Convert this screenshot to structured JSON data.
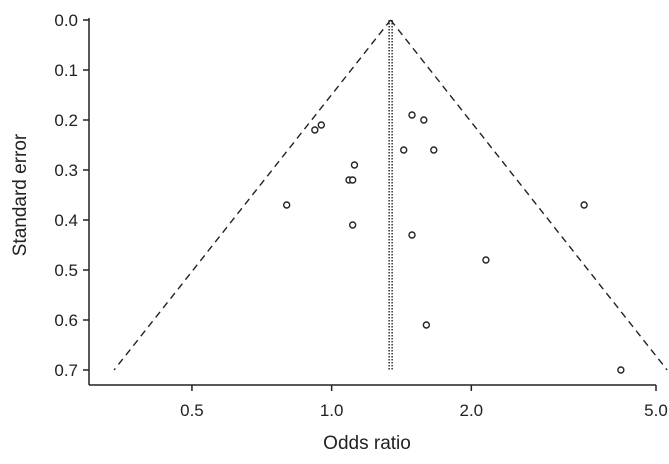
{
  "chart_data": {
    "type": "scatter",
    "subtype": "funnel-plot",
    "title": "",
    "xlabel": "Odds ratio",
    "ylabel": "Standard error",
    "x_scale": "log",
    "xlim": [
      0.3,
      5.0
    ],
    "ylim": [
      0.0,
      0.7
    ],
    "y_inverted": true,
    "x_ticks": [
      0.5,
      1.0,
      2.0,
      5.0
    ],
    "x_tick_labels": [
      "0.5",
      "1.0",
      "2.0",
      "5.0"
    ],
    "y_ticks": [
      0.0,
      0.1,
      0.2,
      0.3,
      0.4,
      0.5,
      0.6,
      0.7
    ],
    "y_tick_labels": [
      "0.0",
      "0.1",
      "0.2",
      "0.3",
      "0.4",
      "0.5",
      "0.6",
      "0.7"
    ],
    "pooled_or": 1.34,
    "funnel_limits": "95% pseudo-confidence limits (OR x exp(±1.96·SE))",
    "grid": false,
    "points": [
      {
        "x": 0.92,
        "y": 0.22
      },
      {
        "x": 0.95,
        "y": 0.21
      },
      {
        "x": 1.12,
        "y": 0.29
      },
      {
        "x": 1.09,
        "y": 0.32
      },
      {
        "x": 1.11,
        "y": 0.32
      },
      {
        "x": 0.8,
        "y": 0.37
      },
      {
        "x": 1.11,
        "y": 0.41
      },
      {
        "x": 1.49,
        "y": 0.19
      },
      {
        "x": 1.58,
        "y": 0.2
      },
      {
        "x": 1.43,
        "y": 0.26
      },
      {
        "x": 1.66,
        "y": 0.26
      },
      {
        "x": 1.49,
        "y": 0.43
      },
      {
        "x": 2.15,
        "y": 0.48
      },
      {
        "x": 3.5,
        "y": 0.37
      },
      {
        "x": 1.6,
        "y": 0.61
      },
      {
        "x": 4.2,
        "y": 0.7
      }
    ]
  }
}
